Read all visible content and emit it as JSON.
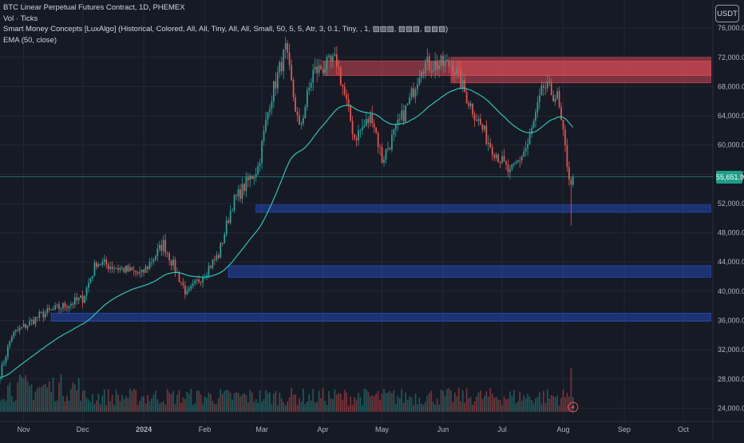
{
  "legend": {
    "title": "BTC Linear Perpetual Futures Contract, 1D, PHEMEX",
    "volume": "Vol · Ticks",
    "smc": "Smart Money Concepts [LuxAlgo] (Historical, Colored, All, All, Tiny, All, All, Small, 50, 5, 5, Atr, 3, 0.1, Tiny, , 1, ▨▨▨, ▨▨▨, ▨▨▨)",
    "ema": "EMA (50, close)"
  },
  "currency_button": "USDT",
  "last_price_label": "55,651.9",
  "colors": {
    "background": "#161a25",
    "up": "#26a69a",
    "down": "#ef5350",
    "ema": "#2ec4b6",
    "bearish_ob": "#f7525f",
    "bullish_ob": "#2962ff",
    "axis_text": "#b2b5be",
    "price_line": "#1f9e89"
  },
  "chart_data": {
    "type": "candlestick",
    "title": "BTC Linear Perpetual Futures Contract, 1D, PHEMEX",
    "x_ticks": [
      "Nov",
      "Dec",
      "2024",
      "Feb",
      "Mar",
      "Apr",
      "May",
      "Jun",
      "Jul",
      "Aug",
      "Sep",
      "Oct"
    ],
    "y_ticks": [
      "24,000.0",
      "28,000.0",
      "32,000.0",
      "36,000.0",
      "40,000.0",
      "44,000.0",
      "48,000.0",
      "52,000.0",
      "56,000.0",
      "60,000.0",
      "64,000.0",
      "68,000.0",
      "72,000.0",
      "76,000.0"
    ],
    "y_range": [
      23500,
      77000
    ],
    "last_price": 55651.9,
    "price_anchors": [
      {
        "date": "2023-10-20",
        "price": 28700
      },
      {
        "date": "2023-10-26",
        "price": 34000
      },
      {
        "date": "2023-11-10",
        "price": 36800
      },
      {
        "date": "2023-12-01",
        "price": 39000
      },
      {
        "date": "2023-12-08",
        "price": 44000
      },
      {
        "date": "2023-12-31",
        "price": 42300
      },
      {
        "date": "2024-01-11",
        "price": 46500
      },
      {
        "date": "2024-01-23",
        "price": 39500
      },
      {
        "date": "2024-02-08",
        "price": 45000
      },
      {
        "date": "2024-02-15",
        "price": 52000
      },
      {
        "date": "2024-02-28",
        "price": 57000
      },
      {
        "date": "2024-03-05",
        "price": 66000
      },
      {
        "date": "2024-03-13",
        "price": 73000
      },
      {
        "date": "2024-03-20",
        "price": 62000
      },
      {
        "date": "2024-03-27",
        "price": 70000
      },
      {
        "date": "2024-04-08",
        "price": 71500
      },
      {
        "date": "2024-04-17",
        "price": 61000
      },
      {
        "date": "2024-04-26",
        "price": 64000
      },
      {
        "date": "2024-05-01",
        "price": 58000
      },
      {
        "date": "2024-05-15",
        "price": 66000
      },
      {
        "date": "2024-05-21",
        "price": 71000
      },
      {
        "date": "2024-06-06",
        "price": 71000
      },
      {
        "date": "2024-06-14",
        "price": 66000
      },
      {
        "date": "2024-06-24",
        "price": 60500
      },
      {
        "date": "2024-07-05",
        "price": 56000
      },
      {
        "date": "2024-07-14",
        "price": 60000
      },
      {
        "date": "2024-07-22",
        "price": 68000
      },
      {
        "date": "2024-07-29",
        "price": 66500
      },
      {
        "date": "2024-08-05",
        "price": 54000
      },
      {
        "date": "2024-08-06",
        "price": 55651.9
      }
    ],
    "order_blocks": [
      {
        "type": "bearish",
        "start": "2024-04-01",
        "end": "2024-10-15",
        "low": 69500,
        "high": 71500
      },
      {
        "type": "bearish",
        "start": "2024-06-05",
        "end": "2024-10-15",
        "low": 68500,
        "high": 72000
      },
      {
        "type": "bullish",
        "start": "2024-02-27",
        "end": "2024-10-15",
        "low": 50800,
        "high": 51800
      },
      {
        "type": "bullish",
        "start": "2024-02-13",
        "end": "2024-10-15",
        "low": 41900,
        "high": 43500
      },
      {
        "type": "bullish",
        "start": "2023-11-15",
        "end": "2024-10-15",
        "low": 35900,
        "high": 37000
      }
    ],
    "ema_period": 50
  }
}
